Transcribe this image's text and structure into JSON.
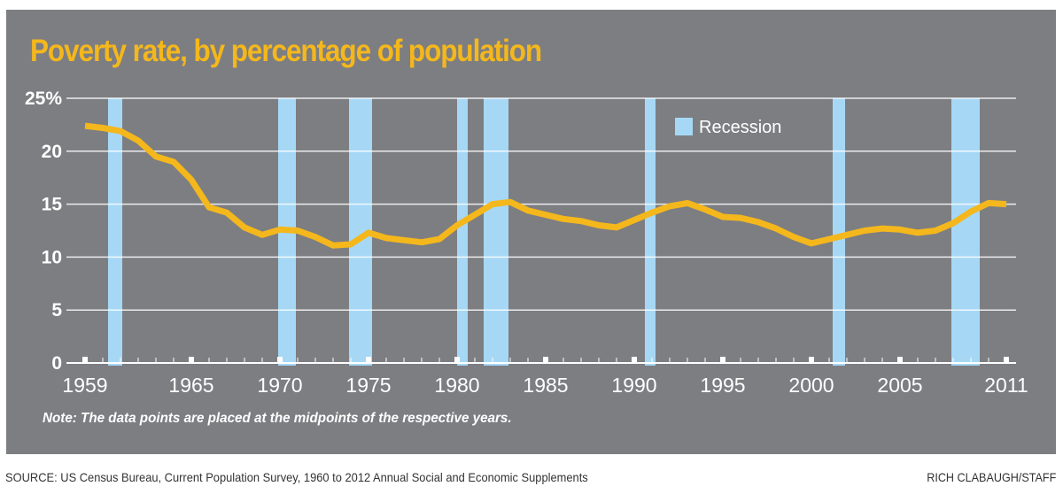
{
  "chart_data": {
    "type": "line",
    "title": "Poverty rate, by percentage of population",
    "xlabel": "",
    "ylabel": "",
    "x": [
      1959,
      1960,
      1961,
      1962,
      1963,
      1964,
      1965,
      1966,
      1967,
      1968,
      1969,
      1970,
      1971,
      1972,
      1973,
      1974,
      1975,
      1976,
      1977,
      1978,
      1979,
      1980,
      1981,
      1982,
      1983,
      1984,
      1985,
      1986,
      1987,
      1988,
      1989,
      1990,
      1991,
      1992,
      1993,
      1994,
      1995,
      1996,
      1997,
      1998,
      1999,
      2000,
      2001,
      2002,
      2003,
      2004,
      2005,
      2006,
      2007,
      2008,
      2009,
      2010,
      2011
    ],
    "series": [
      {
        "name": "Poverty rate",
        "color": "#f4b71c",
        "values": [
          22.4,
          22.2,
          21.9,
          21.0,
          19.5,
          19.0,
          17.3,
          14.7,
          14.2,
          12.8,
          12.1,
          12.6,
          12.5,
          11.9,
          11.1,
          11.2,
          12.3,
          11.8,
          11.6,
          11.4,
          11.7,
          13.0,
          14.0,
          15.0,
          15.2,
          14.4,
          14.0,
          13.6,
          13.4,
          13.0,
          12.8,
          13.5,
          14.2,
          14.8,
          15.1,
          14.5,
          13.8,
          13.7,
          13.3,
          12.7,
          11.9,
          11.3,
          11.7,
          12.1,
          12.5,
          12.7,
          12.6,
          12.3,
          12.5,
          13.2,
          14.3,
          15.1,
          15.0
        ]
      }
    ],
    "recessions": [
      {
        "start": 1960.3,
        "end": 1961.1
      },
      {
        "start": 1969.9,
        "end": 1970.9
      },
      {
        "start": 1973.9,
        "end": 1975.2
      },
      {
        "start": 1980.0,
        "end": 1980.6
      },
      {
        "start": 1981.5,
        "end": 1982.9
      },
      {
        "start": 1990.6,
        "end": 1991.2
      },
      {
        "start": 2001.2,
        "end": 2001.9
      },
      {
        "start": 2007.9,
        "end": 2009.5
      }
    ],
    "yticks": [
      0,
      5,
      10,
      15,
      20,
      25
    ],
    "ytick_labels": [
      "0",
      "5",
      "10",
      "15",
      "20",
      "25%"
    ],
    "xticks": [
      1959,
      1965,
      1970,
      1975,
      1980,
      1985,
      1990,
      1995,
      2000,
      2005,
      2011
    ],
    "xtick_labels": [
      "1959",
      "1965",
      "1970",
      "1975",
      "1980",
      "1985",
      "1990",
      "1995",
      "2000",
      "2005",
      "2011"
    ],
    "xlim": [
      1958.4,
      2011.6
    ],
    "ylim": [
      0,
      25
    ],
    "grid": true,
    "legend": {
      "position": "top-right",
      "entries": [
        {
          "label": "Recession",
          "color": "#a6d8f6"
        }
      ]
    },
    "annotations": [
      "Note: The data points are placed at the midpoints of the respective years."
    ]
  },
  "colors": {
    "panel_background": "#7d7e82",
    "line": "#f4b71c",
    "recession": "#a6d8f6",
    "gridline": "#ffffff"
  },
  "footer": {
    "source": "SOURCE: US Census Bureau, Current Population Survey, 1960 to 2012 Annual Social and Economic Supplements",
    "credit": "RICH CLABAUGH/STAFF"
  }
}
